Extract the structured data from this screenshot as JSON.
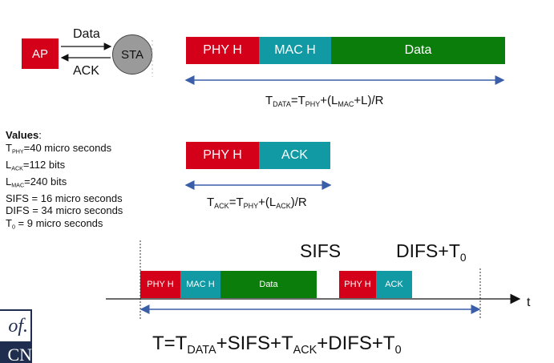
{
  "exchange": {
    "ap_label": "AP",
    "sta_label": "STA",
    "data_label": "Data",
    "ack_label": "ACK"
  },
  "data_frame": {
    "phy": "PHY H",
    "mac": "MAC H",
    "data": "Data",
    "formula": {
      "t": "T",
      "t_sub": "DATA",
      "eq": "=T",
      "phy_sub": "PHY",
      "mid": "+(L",
      "mac_sub": "MAC",
      "tail": "+L)/R"
    }
  },
  "ack_frame": {
    "phy": "PHY H",
    "ack": "ACK",
    "formula": {
      "t": "T",
      "t_sub": "ACK",
      "eq": "=T",
      "phy_sub": "PHY",
      "mid": "+(L",
      "ack_sub": "ACK",
      "tail": ")/R"
    }
  },
  "values": {
    "title": "Values",
    "colon": ":",
    "lines": [
      {
        "pre": "T",
        "sub": "PHY",
        "post": "=40 micro seconds"
      },
      {
        "pre": "L",
        "sub": "ACK",
        "post": "=112 bits"
      },
      {
        "pre": "L",
        "sub": "MAC",
        "post": "=240 bits"
      },
      {
        "pre": "SIFS = 16 micro seconds",
        "sub": "",
        "post": ""
      },
      {
        "pre": "DIFS = 34 micro seconds",
        "sub": "",
        "post": ""
      },
      {
        "pre": "T",
        "sub": "0",
        "post": " = 9 micro seconds"
      }
    ]
  },
  "timeline": {
    "sifs_label": "SIFS",
    "difs_label": "DIFS+T",
    "difs_sub": "0",
    "t_axis": "t",
    "phy1": "PHY H",
    "mac1": "MAC H",
    "data1": "Data",
    "phy2": "PHY H",
    "ack2": "ACK",
    "total": {
      "p1": "T=T",
      "s1": "DATA",
      "p2": "+SIFS+T",
      "s2": "ACK",
      "p3": "+DIFS+T",
      "s3": "0"
    }
  },
  "corner_logo": {
    "line1": "of.",
    "line2": "CN"
  },
  "colors": {
    "red": "#d4001a",
    "teal": "#119aa4",
    "green": "#0b7d0b",
    "arrow": "#3a5fa8",
    "ap": "#d4001a",
    "sta": "#9a9a9a"
  }
}
